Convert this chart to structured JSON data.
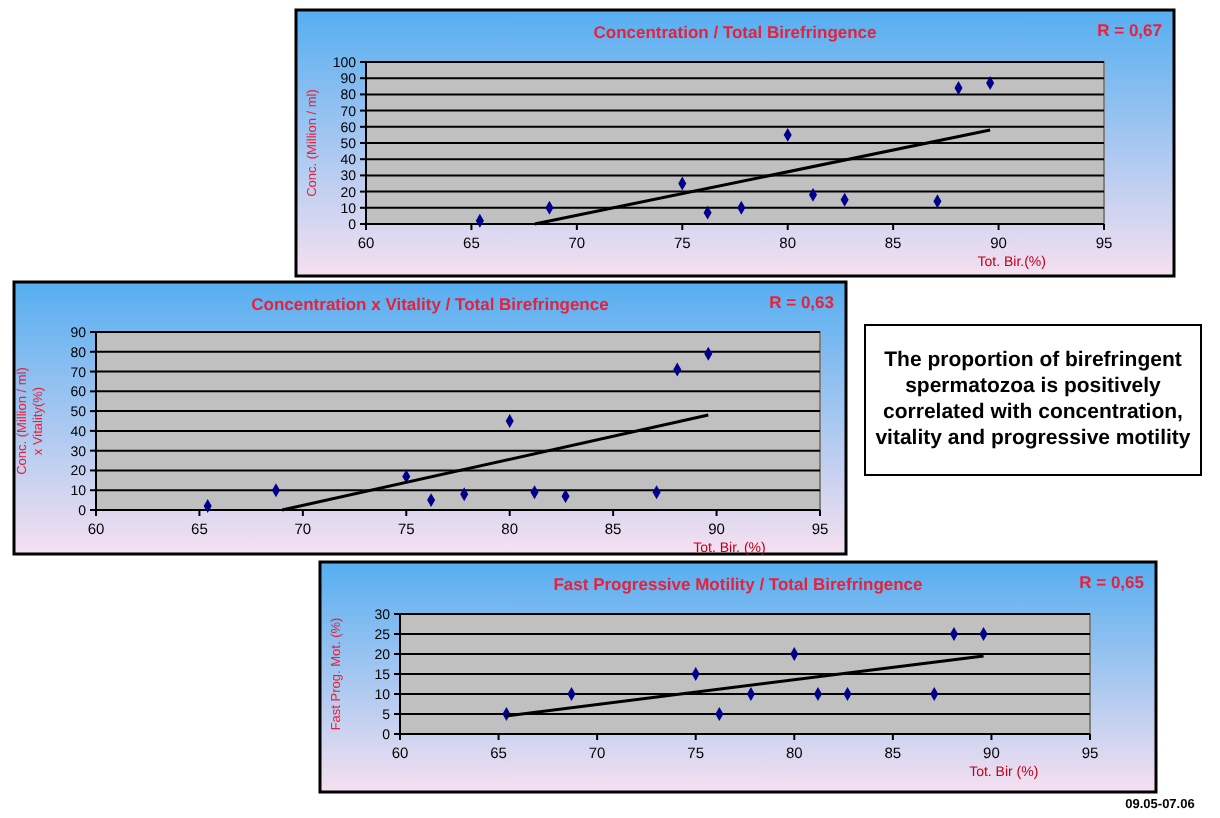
{
  "chart_data": [
    {
      "type": "scatter",
      "title": "Concentration / Total Birefringence",
      "xlabel": "Tot. Bir.(%)",
      "ylabel": "Conc. (Million / ml)",
      "annotations": [
        "R = 0,67"
      ],
      "xlim": [
        60,
        95
      ],
      "ylim": [
        0,
        100
      ],
      "xticks": [
        60,
        65,
        70,
        75,
        80,
        85,
        90,
        95
      ],
      "yticks": [
        0,
        10,
        20,
        30,
        40,
        50,
        60,
        70,
        80,
        90,
        100
      ],
      "grid": "y",
      "series": [
        {
          "type": "scatter",
          "marker": "diamond",
          "color": "#00008b",
          "x": [
            65.4,
            68.7,
            75,
            76.2,
            77.8,
            80,
            81.2,
            82.7,
            87.1,
            88.1,
            89.6
          ],
          "values": [
            2,
            10,
            25,
            7,
            10,
            55,
            18,
            15,
            14,
            84,
            87
          ]
        },
        {
          "type": "line",
          "marker": "none",
          "color": "#000000",
          "x": [
            68,
            89.6
          ],
          "values": [
            0,
            58
          ]
        }
      ]
    },
    {
      "type": "scatter",
      "title": "Concentration x Vitality / Total Birefringence",
      "xlabel": "Tot. Bir. (%)",
      "ylabel": "Conc. (Million / ml)\nx Vitality(%)",
      "annotations": [
        "R = 0,63"
      ],
      "xlim": [
        60,
        95
      ],
      "ylim": [
        0,
        90
      ],
      "xticks": [
        60,
        65,
        70,
        75,
        80,
        85,
        90,
        95
      ],
      "yticks": [
        0,
        10,
        20,
        30,
        40,
        50,
        60,
        70,
        80,
        90
      ],
      "grid": "y",
      "series": [
        {
          "type": "scatter",
          "marker": "diamond",
          "color": "#00008b",
          "x": [
            65.4,
            68.7,
            75,
            76.2,
            77.8,
            80,
            81.2,
            82.7,
            87.1,
            88.1,
            89.6
          ],
          "values": [
            2,
            10,
            17,
            5,
            8,
            45,
            9,
            7,
            9,
            71,
            79
          ]
        },
        {
          "type": "line",
          "marker": "none",
          "color": "#000000",
          "x": [
            69,
            89.6
          ],
          "values": [
            0,
            48
          ]
        }
      ]
    },
    {
      "type": "scatter",
      "title": "Fast Progressive Motility / Total Birefringence",
      "xlabel": "Tot. Bir (%)",
      "ylabel": "Fast Prog. Mot. (%)",
      "annotations": [
        "R = 0,65"
      ],
      "xlim": [
        60,
        95
      ],
      "ylim": [
        0,
        30
      ],
      "xticks": [
        60,
        65,
        70,
        75,
        80,
        85,
        90,
        95
      ],
      "yticks": [
        0,
        5,
        10,
        15,
        20,
        25,
        30
      ],
      "grid": "y",
      "series": [
        {
          "type": "scatter",
          "marker": "diamond",
          "color": "#00008b",
          "x": [
            65.4,
            68.7,
            75,
            76.2,
            77.8,
            80,
            81.2,
            82.7,
            87.1,
            88.1,
            89.6
          ],
          "values": [
            5,
            10,
            15,
            5,
            10,
            20,
            10,
            10,
            10,
            25,
            25
          ]
        },
        {
          "type": "line",
          "marker": "none",
          "color": "#000000",
          "x": [
            65.4,
            89.6
          ],
          "values": [
            4.5,
            19.5
          ]
        }
      ]
    },
    {
      "type": "other",
      "annotations": [
        "The proportion of birefringent spermatozoa is positively correlated with concentration, vitality and progressive motility",
        "09.05-07.06"
      ]
    }
  ]
}
